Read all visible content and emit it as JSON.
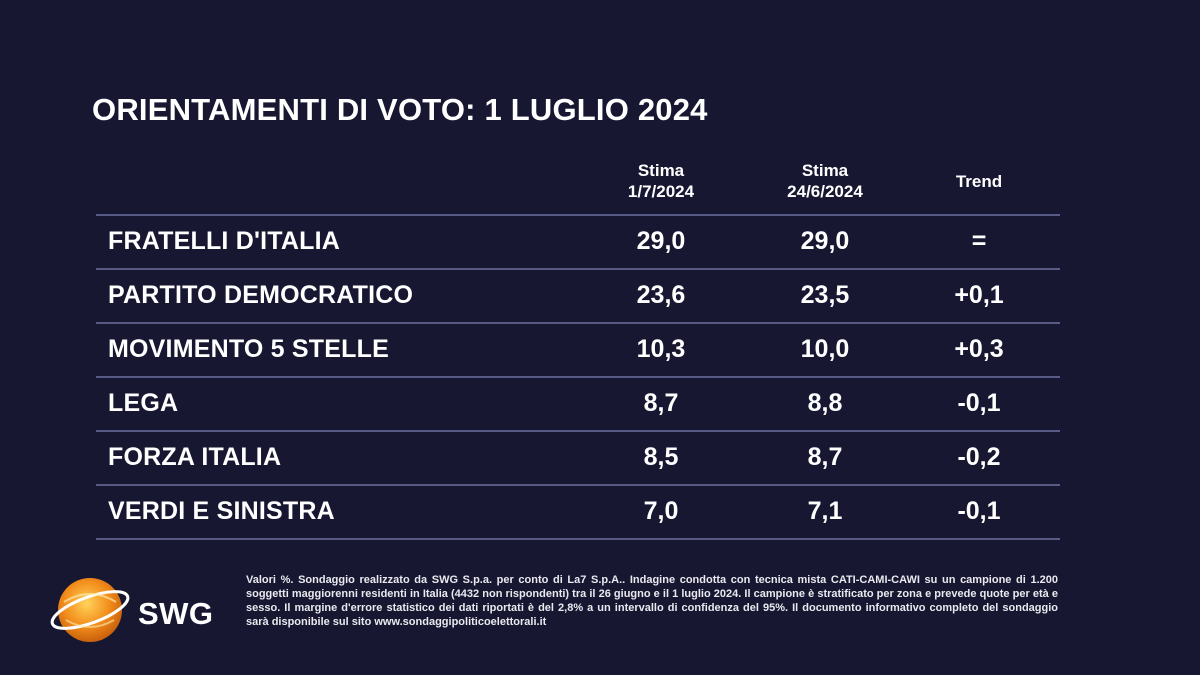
{
  "title": "ORIENTAMENTI DI VOTO: 1 LUGLIO 2024",
  "columns": {
    "c1": [
      "Stima",
      "1/7/2024"
    ],
    "c2": [
      "Stima",
      "24/6/2024"
    ],
    "c3": "Trend"
  },
  "chart_data": {
    "type": "table",
    "title": "ORIENTAMENTI DI VOTO: 1 LUGLIO 2024",
    "columns": [
      "",
      "Stima 1/7/2024",
      "Stima 24/6/2024",
      "Trend"
    ],
    "rows": [
      {
        "party": "FRATELLI D'ITALIA",
        "stima_1": "29,0",
        "stima_2": "29,0",
        "trend": "="
      },
      {
        "party": "PARTITO DEMOCRATICO",
        "stima_1": "23,6",
        "stima_2": "23,5",
        "trend": "+0,1"
      },
      {
        "party": "MOVIMENTO 5 STELLE",
        "stima_1": "10,3",
        "stima_2": "10,0",
        "trend": "+0,3"
      },
      {
        "party": "LEGA",
        "stima_1": "8,7",
        "stima_2": "8,8",
        "trend": "-0,1"
      },
      {
        "party": "FORZA ITALIA",
        "stima_1": "8,5",
        "stima_2": "8,7",
        "trend": "-0,2"
      },
      {
        "party": "VERDI E SINISTRA",
        "stima_1": "7,0",
        "stima_2": "7,1",
        "trend": "-0,1"
      }
    ]
  },
  "logo": {
    "text": "SWG",
    "colors": {
      "orange": "#f28c1a",
      "yellow": "#ffd35a",
      "white": "#ffffff"
    }
  },
  "footnote": "Valori %. Sondaggio realizzato da SWG S.p.a. per conto di La7 S.p.A.. Indagine condotta con tecnica mista CATI-CAMI-CAWI su un campione di 1.200 soggetti maggiorenni residenti in Italia (4432 non rispondenti) tra il 26 giugno e il 1 luglio 2024. Il campione è stratificato per zona e prevede quote per età e sesso. Il margine d'errore statistico dei dati riportati è del 2,8% a un intervallo di confidenza del 95%. Il documento informativo completo del sondaggio sarà disponibile sul sito www.sondaggipoliticoelettorali.it",
  "colors": {
    "background": "#171732",
    "rule": "#5a5a86",
    "text": "#ffffff"
  }
}
